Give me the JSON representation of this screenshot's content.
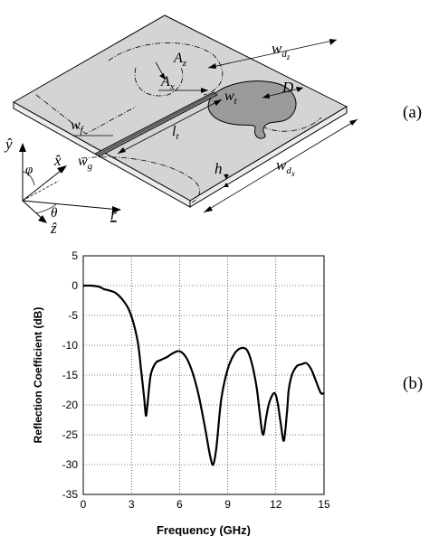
{
  "panel_labels": {
    "a": "(a)",
    "b": "(b)"
  },
  "antenna": {
    "labels": {
      "wdz_main": "w",
      "wdz_sub": "d",
      "wdz_subsub": "z",
      "wdx_main": "w",
      "wdx_sub": "d",
      "wdx_subsub": "x",
      "D": "D",
      "Az_main": "A",
      "Az_sub": "z",
      "Ax_main": "A",
      "Ax_sub": "x",
      "wt_main": "w",
      "wt_sub": "t",
      "wf_main": "w",
      "wf_sub": "f",
      "wg_main": "w",
      "wg_sub": "g",
      "lt_main": "l",
      "lt_sub": "t",
      "h": "h"
    },
    "axes": {
      "y": "ŷ",
      "x": "x̂",
      "z": "ẑ",
      "r": "r",
      "phi": "φ",
      "theta": "θ"
    },
    "colors": {
      "substrate": "#d4d4d4",
      "patch": "#9a9a9a",
      "line": "#000000"
    }
  },
  "chart_data": {
    "type": "line",
    "xlabel": "Frequency (GHz)",
    "ylabel": "Reflection Coefficient (dB)",
    "xlim": [
      0,
      15
    ],
    "ylim": [
      -35,
      5
    ],
    "xticks": [
      0,
      3,
      6,
      9,
      12,
      15
    ],
    "yticks": [
      5,
      0,
      -5,
      -10,
      -15,
      -20,
      -25,
      -30,
      -35
    ],
    "grid": true,
    "series": [
      {
        "x": [
          0,
          0.5,
          1.0,
          1.3,
          1.6,
          2.0,
          2.4,
          2.8,
          3.1,
          3.4,
          3.6,
          3.8,
          3.9,
          4.0,
          4.2,
          4.5,
          4.8,
          5.2,
          5.6,
          6.0,
          6.4,
          6.8,
          7.2,
          7.6,
          7.9,
          8.1,
          8.3,
          8.6,
          9.0,
          9.4,
          9.8,
          10.2,
          10.5,
          10.8,
          11.0,
          11.2,
          11.4,
          11.6,
          11.9,
          12.1,
          12.3,
          12.5,
          12.7,
          12.8,
          13.0,
          13.3,
          13.6,
          13.9,
          14.2,
          14.5,
          14.8,
          15.0
        ],
        "y": [
          0,
          0,
          -0.2,
          -0.6,
          -0.8,
          -1.2,
          -2.2,
          -3.8,
          -6,
          -9.5,
          -14,
          -19,
          -21.8,
          -20,
          -15,
          -13,
          -12.5,
          -12,
          -11.3,
          -11,
          -12,
          -14.5,
          -18.5,
          -24,
          -28.5,
          -30,
          -27,
          -19,
          -14,
          -11.5,
          -10.5,
          -10.8,
          -13,
          -17,
          -21.5,
          -25,
          -22,
          -19.5,
          -18,
          -19.5,
          -23,
          -26,
          -21,
          -17.5,
          -15,
          -13.5,
          -13.2,
          -13,
          -14,
          -16,
          -18,
          -18
        ]
      }
    ]
  }
}
